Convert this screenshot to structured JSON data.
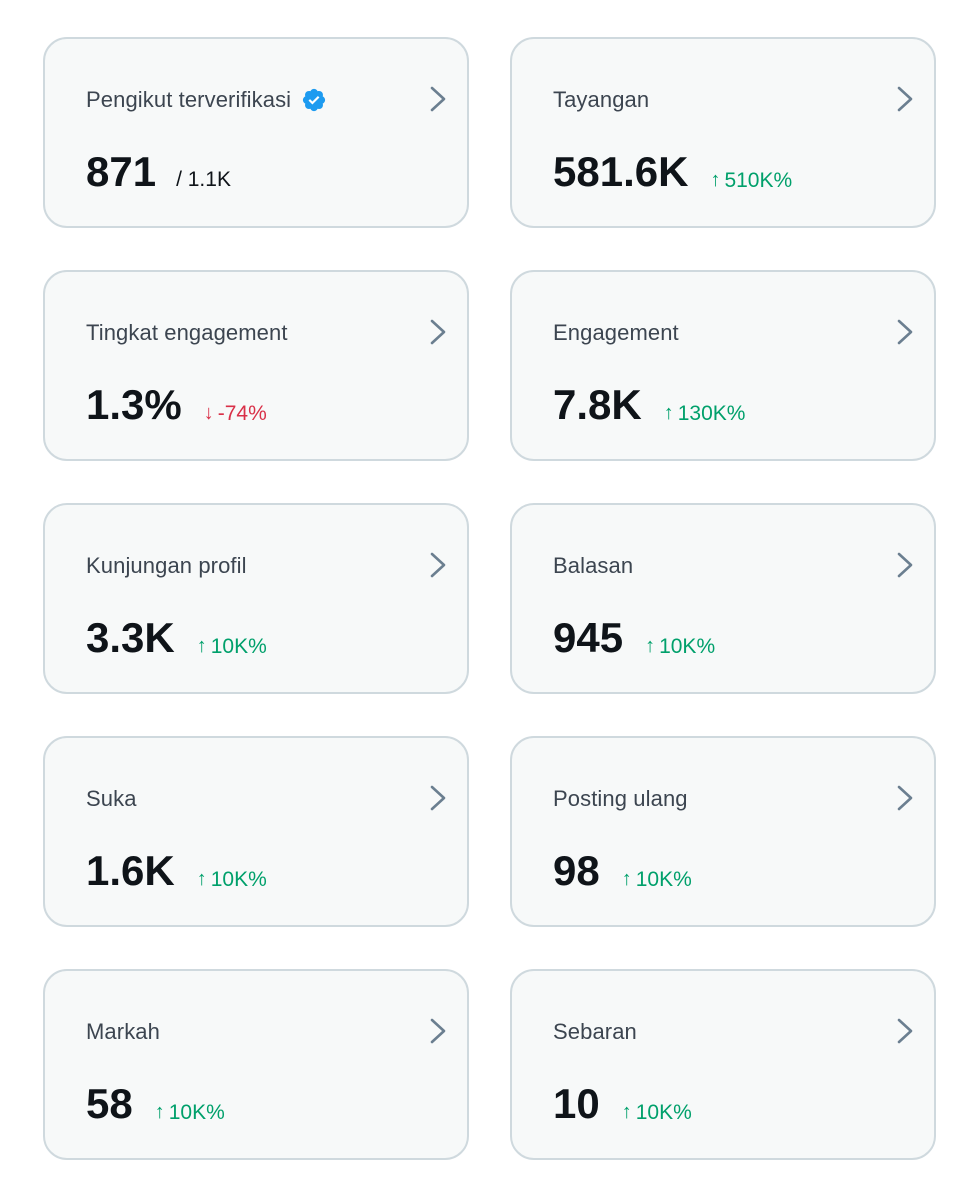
{
  "colors": {
    "card_bg": "#f7f9f9",
    "card_border": "#cfd9de",
    "positive": "#00a06b",
    "negative": "#d93048",
    "verified": "#1d9bf0",
    "chevron": "#6b7f90"
  },
  "cards": [
    {
      "title": "Pengikut terverifikasi",
      "value": "871",
      "sub": "/ 1.1K",
      "icon": "verified-badge-icon"
    },
    {
      "title": "Tayangan",
      "value": "581.6K",
      "delta": "510K%",
      "direction": "up",
      "arrow": "↑"
    },
    {
      "title": "Tingkat engagement",
      "value": "1.3%",
      "delta": "-74%",
      "direction": "down",
      "arrow": "↓"
    },
    {
      "title": "Engagement",
      "value": "7.8K",
      "delta": "130K%",
      "direction": "up",
      "arrow": "↑"
    },
    {
      "title": "Kunjungan profil",
      "value": "3.3K",
      "delta": "10K%",
      "direction": "up",
      "arrow": "↑"
    },
    {
      "title": "Balasan",
      "value": "945",
      "delta": "10K%",
      "direction": "up",
      "arrow": "↑"
    },
    {
      "title": "Suka",
      "value": "1.6K",
      "delta": "10K%",
      "direction": "up",
      "arrow": "↑"
    },
    {
      "title": "Posting ulang",
      "value": "98",
      "delta": "10K%",
      "direction": "up",
      "arrow": "↑"
    },
    {
      "title": "Markah",
      "value": "58",
      "delta": "10K%",
      "direction": "up",
      "arrow": "↑"
    },
    {
      "title": "Sebaran",
      "value": "10",
      "delta": "10K%",
      "direction": "up",
      "arrow": "↑"
    }
  ]
}
